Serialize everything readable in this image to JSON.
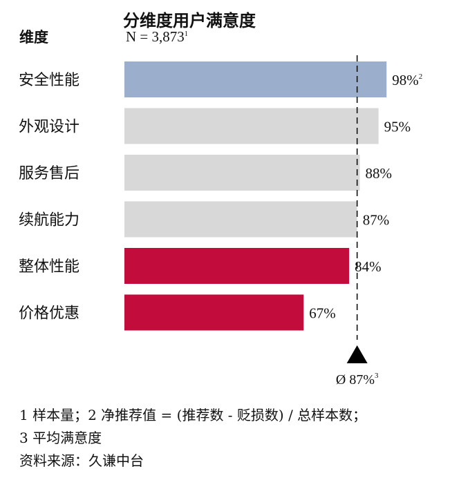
{
  "header": {
    "title": "分维度用户满意度",
    "subtitle_main": "N = 3,873",
    "subtitle_sup": "1",
    "dimension_label": "维度"
  },
  "chart_data": {
    "type": "bar",
    "orientation": "horizontal",
    "title": "分维度用户满意度",
    "categories": [
      "安全性能",
      "外观设计",
      "服务售后",
      "续航能力",
      "整体性能",
      "价格优惠"
    ],
    "values": [
      98,
      95,
      88,
      87,
      84,
      67
    ],
    "value_labels": [
      "98%",
      "95%",
      "88%",
      "87%",
      "84%",
      "67%"
    ],
    "value_label_sups": [
      "2",
      "",
      "",
      "",
      "",
      ""
    ],
    "bar_colors": [
      "#9bafcc",
      "#d8d8d8",
      "#d8d8d8",
      "#d8d8d8",
      "#c20d3c",
      "#c20d3c"
    ],
    "xlim": [
      0,
      100
    ],
    "average": {
      "value": 87,
      "label": "Ø 87%",
      "label_sup": "3"
    },
    "grid": false,
    "legend": "none"
  },
  "footnotes": {
    "line1": "1 样本量；2 净推荐值 = (推荐数 - 贬损数) / 总样本数；",
    "line2": "3 平均满意度",
    "source": "资料来源：久谦中台"
  },
  "colors": {
    "promoter_blue": "#9bafcc",
    "neutral_gray": "#d8d8d8",
    "accent_red": "#c20d3c",
    "text": "#111111"
  }
}
